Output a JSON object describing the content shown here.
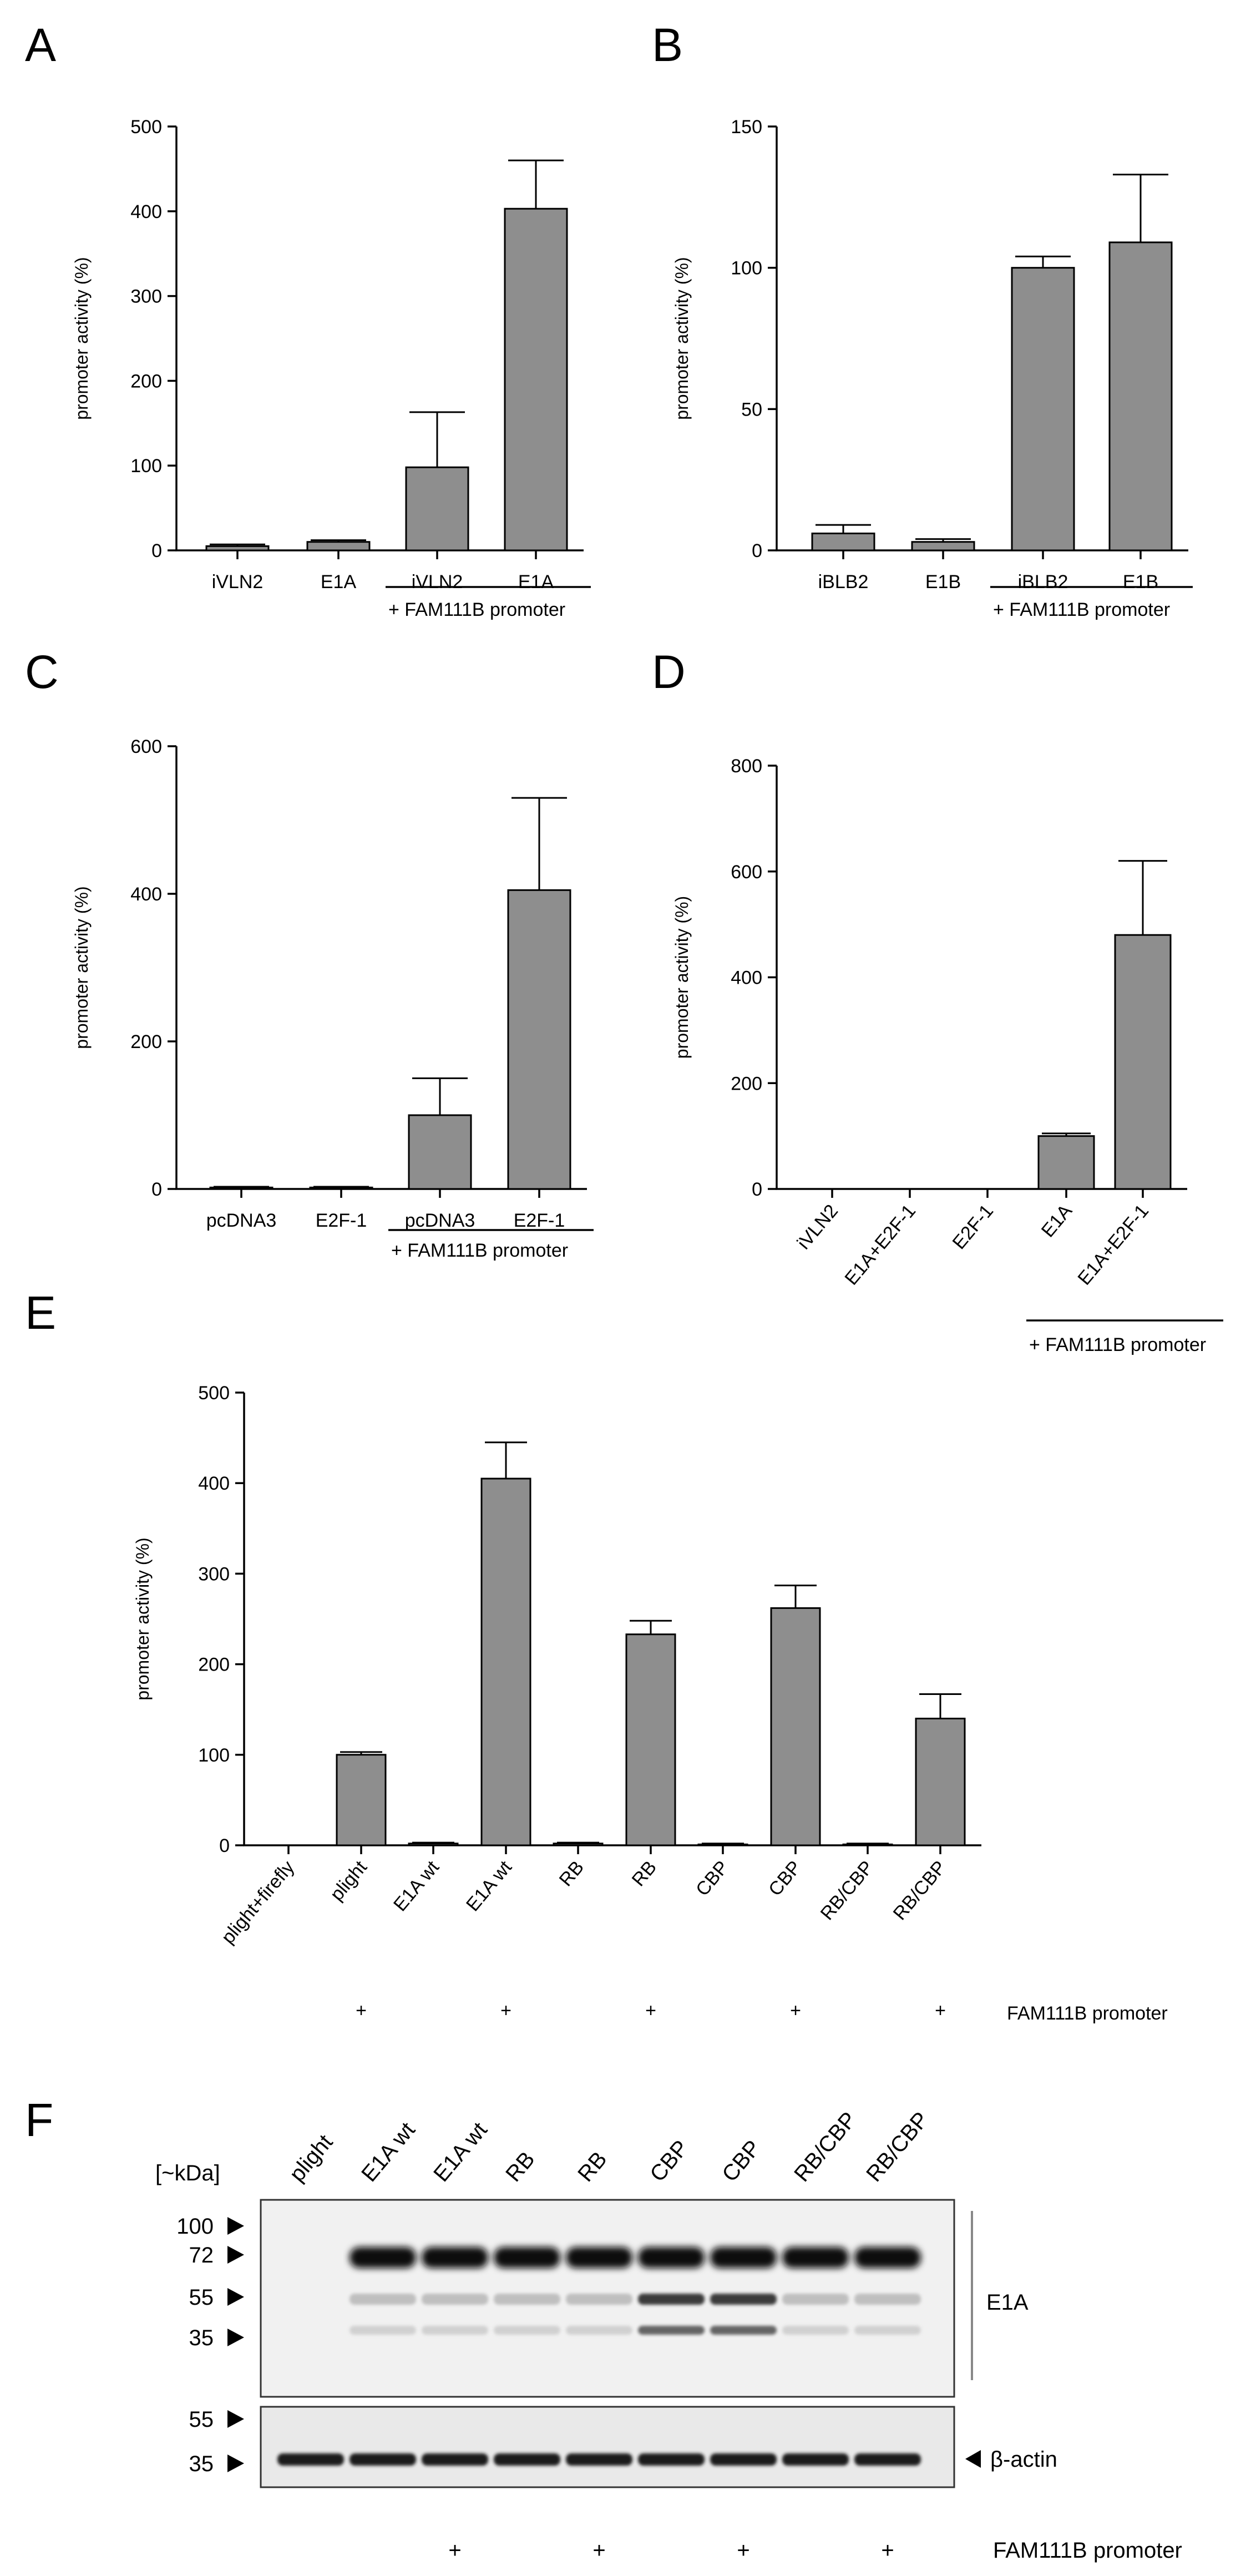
{
  "chart_data": [
    {
      "panel": "A",
      "type": "bar",
      "ylabel": "promoter activity (%)",
      "ylim": [
        0,
        500
      ],
      "yticks": [
        0,
        100,
        200,
        300,
        400,
        500
      ],
      "categories": [
        "iVLN2",
        "E1A",
        "iVLN2",
        "E1A"
      ],
      "values": [
        5,
        10,
        98,
        403
      ],
      "errors": [
        2,
        2,
        65,
        57
      ],
      "group_label": "+ FAM111B promoter",
      "group_indices": [
        2,
        3
      ]
    },
    {
      "panel": "B",
      "type": "bar",
      "ylabel": "promoter activity (%)",
      "ylim": [
        0,
        150
      ],
      "yticks": [
        0,
        50,
        100,
        150
      ],
      "categories": [
        "iBLB2",
        "E1B",
        "iBLB2",
        "E1B"
      ],
      "values": [
        6,
        3,
        100,
        109
      ],
      "errors": [
        3,
        1,
        4,
        24
      ],
      "group_label": "+ FAM111B promoter",
      "group_indices": [
        2,
        3
      ]
    },
    {
      "panel": "C",
      "type": "bar",
      "ylabel": "promoter activity (%)",
      "ylim": [
        0,
        600
      ],
      "yticks": [
        0,
        200,
        400,
        600
      ],
      "categories": [
        "pcDNA3",
        "E2F-1",
        "pcDNA3",
        "E2F-1"
      ],
      "values": [
        2,
        2,
        100,
        405
      ],
      "errors": [
        1,
        1,
        50,
        125
      ],
      "group_label": "+ FAM111B promoter",
      "group_indices": [
        2,
        3
      ]
    },
    {
      "panel": "D",
      "type": "bar",
      "ylabel": "promoter activity (%)",
      "ylim": [
        0,
        800
      ],
      "yticks": [
        0,
        200,
        400,
        600,
        800
      ],
      "categories": [
        "iVLN2",
        "E1A+E2F-1",
        "E2F-1",
        "E1A",
        "E1A+E2F-1"
      ],
      "values": [
        0,
        0,
        0,
        100,
        480
      ],
      "errors": [
        0,
        0,
        0,
        5,
        140
      ],
      "group_label": "+ FAM111B promoter",
      "group_indices": [
        3,
        4
      ]
    },
    {
      "panel": "E",
      "type": "bar",
      "ylabel": "promoter activity (%)",
      "ylim": [
        0,
        500
      ],
      "yticks": [
        0,
        100,
        200,
        300,
        400,
        500
      ],
      "categories": [
        "plight+firefly",
        "plight",
        "E1A wt",
        "E1A wt",
        "RB",
        "RB",
        "CBP",
        "CBP",
        "RB/CBP",
        "RB/CBP"
      ],
      "values": [
        0,
        100,
        2,
        405,
        2,
        233,
        1,
        262,
        1,
        140
      ],
      "errors": [
        0,
        3,
        1,
        40,
        1,
        15,
        1,
        25,
        1,
        27
      ],
      "plus_marks": [
        "",
        "+",
        "",
        "+",
        "",
        "+",
        "",
        "+",
        "",
        "+"
      ],
      "plus_label": "FAM111B promoter"
    }
  ],
  "panel_f": {
    "label": "F",
    "kda_label": "[~kDa]",
    "lanes": [
      "plight",
      "E1A wt",
      "E1A wt",
      "RB",
      "RB",
      "CBP",
      "CBP",
      "RB/CBP",
      "RB/CBP"
    ],
    "upper_markers": [
      "100",
      "72",
      "55",
      "35"
    ],
    "lower_markers": [
      "55",
      "35"
    ],
    "upper_target": "E1A",
    "lower_target": "β-actin",
    "plus_marks": [
      "",
      "",
      "+",
      "",
      "+",
      "",
      "+",
      "",
      "+"
    ],
    "plus_label": "FAM111B promoter"
  }
}
